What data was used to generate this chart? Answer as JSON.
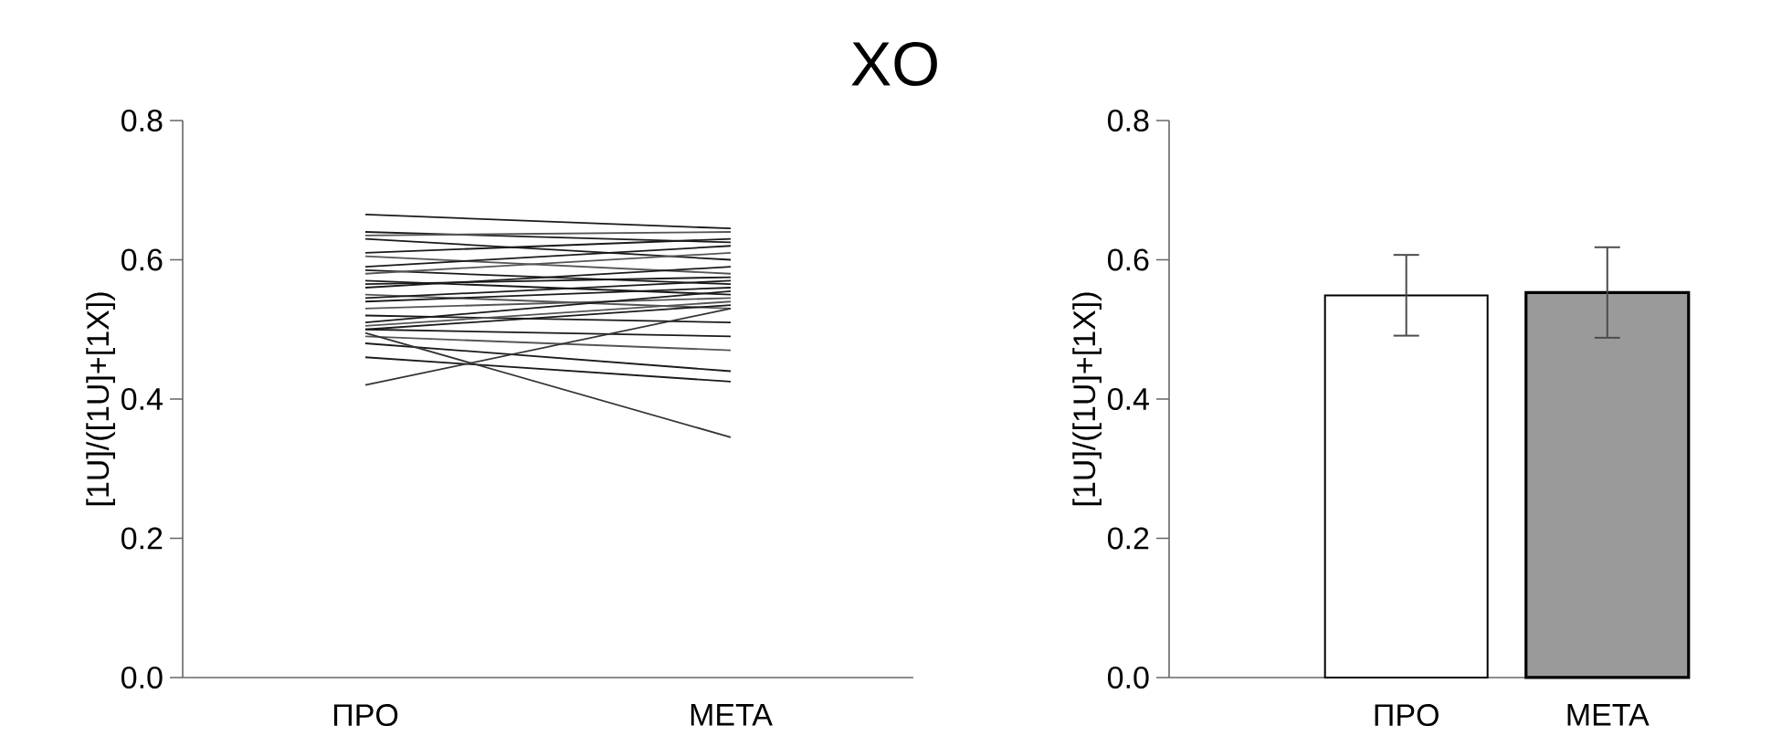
{
  "chart_data": [
    {
      "type": "line",
      "title": "ΧΟ",
      "categories": [
        "ΠΡΟ",
        "ΜΕΤΑ"
      ],
      "ylabel": "[1U]/([1U]+[1X])",
      "ylim": [
        0,
        0.8
      ],
      "yticks": [
        {
          "value": 0,
          "label": "0.0"
        },
        0.2,
        0.4,
        0.6,
        0.8
      ],
      "marker": "none",
      "series": [
        {
          "color": "#1a1a1a",
          "values": [
            0.665,
            0.645
          ]
        },
        {
          "color": "#1a1a1a",
          "values": [
            0.64,
            0.625
          ]
        },
        {
          "color": "#555555",
          "values": [
            0.635,
            0.64
          ]
        },
        {
          "color": "#1a1a1a",
          "values": [
            0.63,
            0.6
          ]
        },
        {
          "color": "#1a1a1a",
          "values": [
            0.61,
            0.63
          ]
        },
        {
          "color": "#555555",
          "values": [
            0.605,
            0.58
          ]
        },
        {
          "color": "#1a1a1a",
          "values": [
            0.59,
            0.62
          ]
        },
        {
          "color": "#1a1a1a",
          "values": [
            0.585,
            0.565
          ]
        },
        {
          "color": "#555555",
          "values": [
            0.58,
            0.61
          ]
        },
        {
          "color": "#1a1a1a",
          "values": [
            0.57,
            0.55
          ]
        },
        {
          "color": "#1a1a1a",
          "values": [
            0.565,
            0.575
          ]
        },
        {
          "color": "#1a1a1a",
          "values": [
            0.56,
            0.59
          ]
        },
        {
          "color": "#555555",
          "values": [
            0.55,
            0.53
          ]
        },
        {
          "color": "#1a1a1a",
          "values": [
            0.545,
            0.57
          ]
        },
        {
          "color": "#1a1a1a",
          "values": [
            0.54,
            0.56
          ]
        },
        {
          "color": "#555555",
          "values": [
            0.53,
            0.545
          ]
        },
        {
          "color": "#1a1a1a",
          "values": [
            0.52,
            0.51
          ]
        },
        {
          "color": "#1a1a1a",
          "values": [
            0.51,
            0.555
          ]
        },
        {
          "color": "#555555",
          "values": [
            0.505,
            0.54
          ]
        },
        {
          "color": "#1a1a1a",
          "values": [
            0.5,
            0.49
          ]
        },
        {
          "color": "#1a1a1a",
          "values": [
            0.5,
            0.535
          ]
        },
        {
          "color": "#555555",
          "values": [
            0.49,
            0.47
          ]
        },
        {
          "color": "#1a1a1a",
          "values": [
            0.48,
            0.44
          ]
        },
        {
          "color": "#1a1a1a",
          "values": [
            0.46,
            0.425
          ]
        },
        {
          "color": "#333333",
          "values": [
            0.495,
            0.345
          ]
        },
        {
          "color": "#333333",
          "values": [
            0.42,
            0.53
          ]
        }
      ]
    },
    {
      "type": "bar",
      "categories": [
        "ΠΡΟ",
        "ΜΕΤΑ"
      ],
      "ylabel": "[1U]/([1U]+[1X])",
      "ylim": [
        0,
        0.8
      ],
      "yticks": [
        {
          "value": 0,
          "label": "0.0"
        },
        0.2,
        0.4,
        0.6,
        0.8
      ],
      "values": [
        0.549,
        0.553
      ],
      "colors": [
        "#ffffff",
        "#9a9a9a"
      ],
      "errors": [
        0.058,
        0.065
      ]
    }
  ]
}
